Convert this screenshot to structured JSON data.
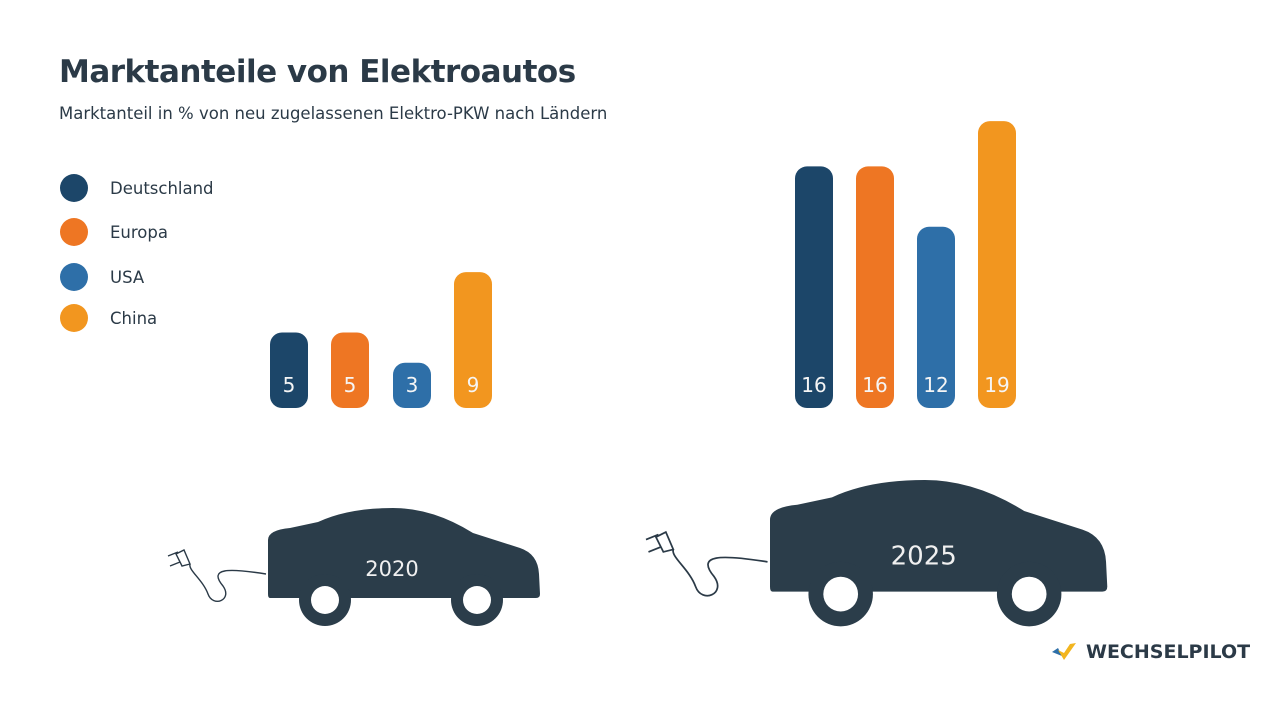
{
  "title": "Marktanteile von Elektroautos",
  "subtitle": "Marktanteil in % von neu zugelassenen Elektro-PKW nach Ländern",
  "brand": "WECHSELPILOT",
  "chart_data": {
    "type": "bar",
    "title": "Marktanteile von Elektroautos",
    "subtitle": "Marktanteil in % von neu zugelassenen Elektro-PKW nach Ländern",
    "categories": [
      "2020",
      "2025"
    ],
    "legend_position": "left",
    "grid": false,
    "series": [
      {
        "name": "Deutschland",
        "color": "#1c4669",
        "values": [
          5,
          16
        ]
      },
      {
        "name": "Europa",
        "color": "#ee7623",
        "values": [
          5,
          16
        ]
      },
      {
        "name": "USA",
        "color": "#2e6fa8",
        "values": [
          3,
          12
        ]
      },
      {
        "name": "China",
        "color": "#f2961f",
        "values": [
          9,
          19
        ]
      }
    ]
  }
}
